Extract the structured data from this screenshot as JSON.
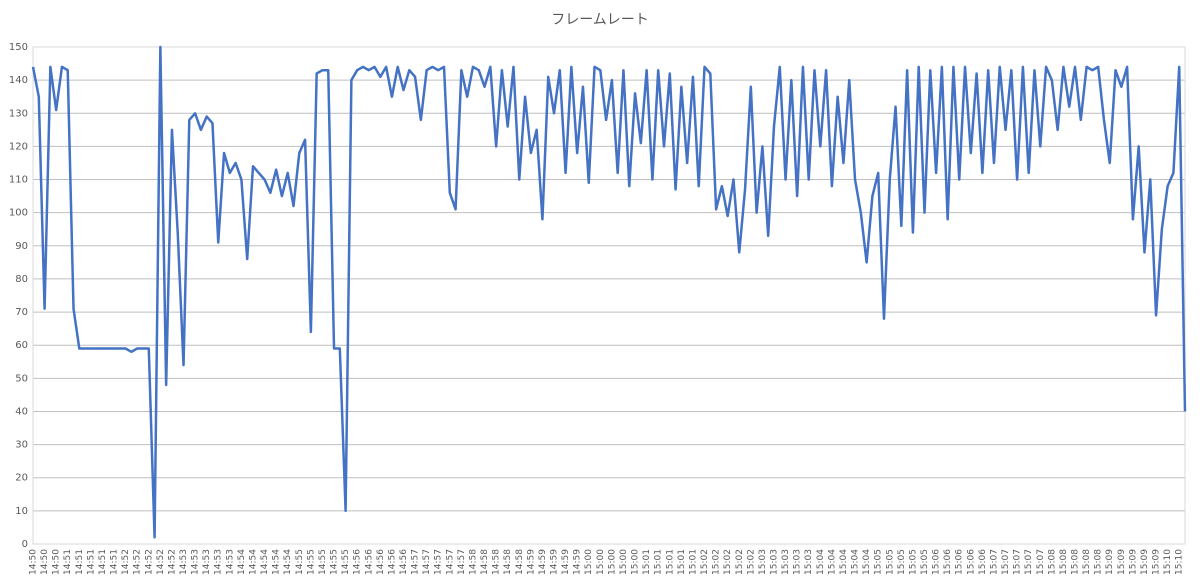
{
  "chart_data": {
    "type": "line",
    "title": "フレームレート",
    "categories": [
      "14:50",
      null,
      "14:50",
      null,
      "14:50",
      null,
      "14:51",
      null,
      "14:51",
      null,
      "14:51",
      null,
      "14:51",
      null,
      "14:51",
      null,
      "14:52",
      null,
      "14:52",
      null,
      "14:52",
      null,
      "14:52",
      null,
      "14:52",
      null,
      "14:53",
      null,
      "14:53",
      null,
      "14:53",
      null,
      "14:53",
      null,
      "14:53",
      null,
      "14:54",
      null,
      "14:54",
      null,
      "14:54",
      null,
      "14:54",
      null,
      "14:54",
      null,
      "14:55",
      null,
      "14:55",
      null,
      "14:55",
      null,
      "14:55",
      null,
      "14:55",
      null,
      "14:56",
      null,
      "14:56",
      null,
      "14:56",
      null,
      "14:56",
      null,
      "14:56",
      null,
      "14:57",
      null,
      "14:57",
      null,
      "14:57",
      null,
      "14:57",
      null,
      "14:57",
      null,
      "14:58",
      null,
      "14:58",
      null,
      "14:58",
      null,
      "14:58",
      null,
      "14:58",
      null,
      "14:59",
      null,
      "14:59",
      null,
      "14:59",
      null,
      "14:59",
      null,
      "14:59",
      null,
      "15:00",
      null,
      "15:00",
      null,
      "15:00",
      null,
      "15:00",
      null,
      "15:00",
      null,
      "15:01",
      null,
      "15:01",
      null,
      "15:01",
      null,
      "15:01",
      null,
      "15:01",
      null,
      "15:02",
      null,
      "15:02",
      null,
      "15:02",
      null,
      "15:02",
      null,
      "15:02",
      null,
      "15:03",
      null,
      "15:03",
      null,
      "15:03",
      null,
      "15:03",
      null,
      "15:03",
      null,
      "15:04",
      null,
      "15:04",
      null,
      "15:04",
      null,
      "15:04",
      null,
      "15:04",
      null,
      "15:05",
      null,
      "15:05",
      null,
      "15:05",
      null,
      "15:05",
      null,
      "15:05",
      null,
      "15:06",
      null,
      "15:06",
      null,
      "15:06",
      null,
      "15:06",
      null,
      "15:06",
      null,
      "15:07",
      null,
      "15:07",
      null,
      "15:07",
      null,
      "15:07",
      null,
      "15:07",
      null,
      "15:08",
      null,
      "15:08",
      null,
      "15:08",
      null,
      "15:08",
      null,
      "15:08",
      null,
      "15:09",
      null,
      "15:09",
      null,
      "15:09",
      null,
      "15:09",
      null,
      "15:09",
      null,
      "15:10",
      null,
      "15:10",
      null
    ],
    "series": [
      {
        "name": "フレームレート",
        "color": "#4472c4",
        "values": [
          144,
          135,
          71,
          144,
          131,
          144,
          143,
          71,
          59,
          59,
          59,
          59,
          59,
          59,
          59,
          59,
          59,
          58,
          59,
          59,
          59,
          2,
          150,
          48,
          125,
          94,
          54,
          128,
          130,
          125,
          129,
          127,
          91,
          118,
          112,
          115,
          110,
          86,
          114,
          112,
          110,
          106,
          113,
          105,
          112,
          102,
          118,
          122,
          64,
          142,
          143,
          143,
          59,
          59,
          10,
          140,
          143,
          144,
          143,
          144,
          141,
          144,
          135,
          144,
          137,
          143,
          141,
          128,
          143,
          144,
          143,
          144,
          106,
          101,
          143,
          135,
          144,
          143,
          138,
          144,
          120,
          143,
          126,
          144,
          110,
          135,
          118,
          125,
          98,
          141,
          130,
          143,
          112,
          144,
          118,
          138,
          109,
          144,
          143,
          128,
          140,
          112,
          143,
          108,
          136,
          121,
          143,
          110,
          143,
          120,
          142,
          107,
          138,
          115,
          141,
          108,
          144,
          142,
          101,
          108,
          99,
          110,
          88,
          107,
          138,
          100,
          120,
          93,
          126,
          144,
          110,
          140,
          105,
          144,
          110,
          143,
          120,
          143,
          108,
          135,
          115,
          140,
          110,
          100,
          85,
          105,
          112,
          68,
          110,
          132,
          96,
          143,
          94,
          144,
          100,
          143,
          112,
          144,
          98,
          144,
          110,
          144,
          118,
          142,
          112,
          143,
          115,
          144,
          125,
          143,
          110,
          144,
          112,
          143,
          120,
          144,
          140,
          125,
          144,
          132,
          144,
          128,
          144,
          143,
          144,
          128,
          115,
          143,
          138,
          144,
          98,
          120,
          88,
          110,
          69,
          95,
          108,
          112,
          144,
          40
        ]
      }
    ],
    "ylim": [
      0,
      150
    ],
    "yticks": [
      0,
      10,
      20,
      30,
      40,
      50,
      60,
      70,
      80,
      90,
      100,
      110,
      120,
      130,
      140,
      150
    ],
    "grid": true
  }
}
